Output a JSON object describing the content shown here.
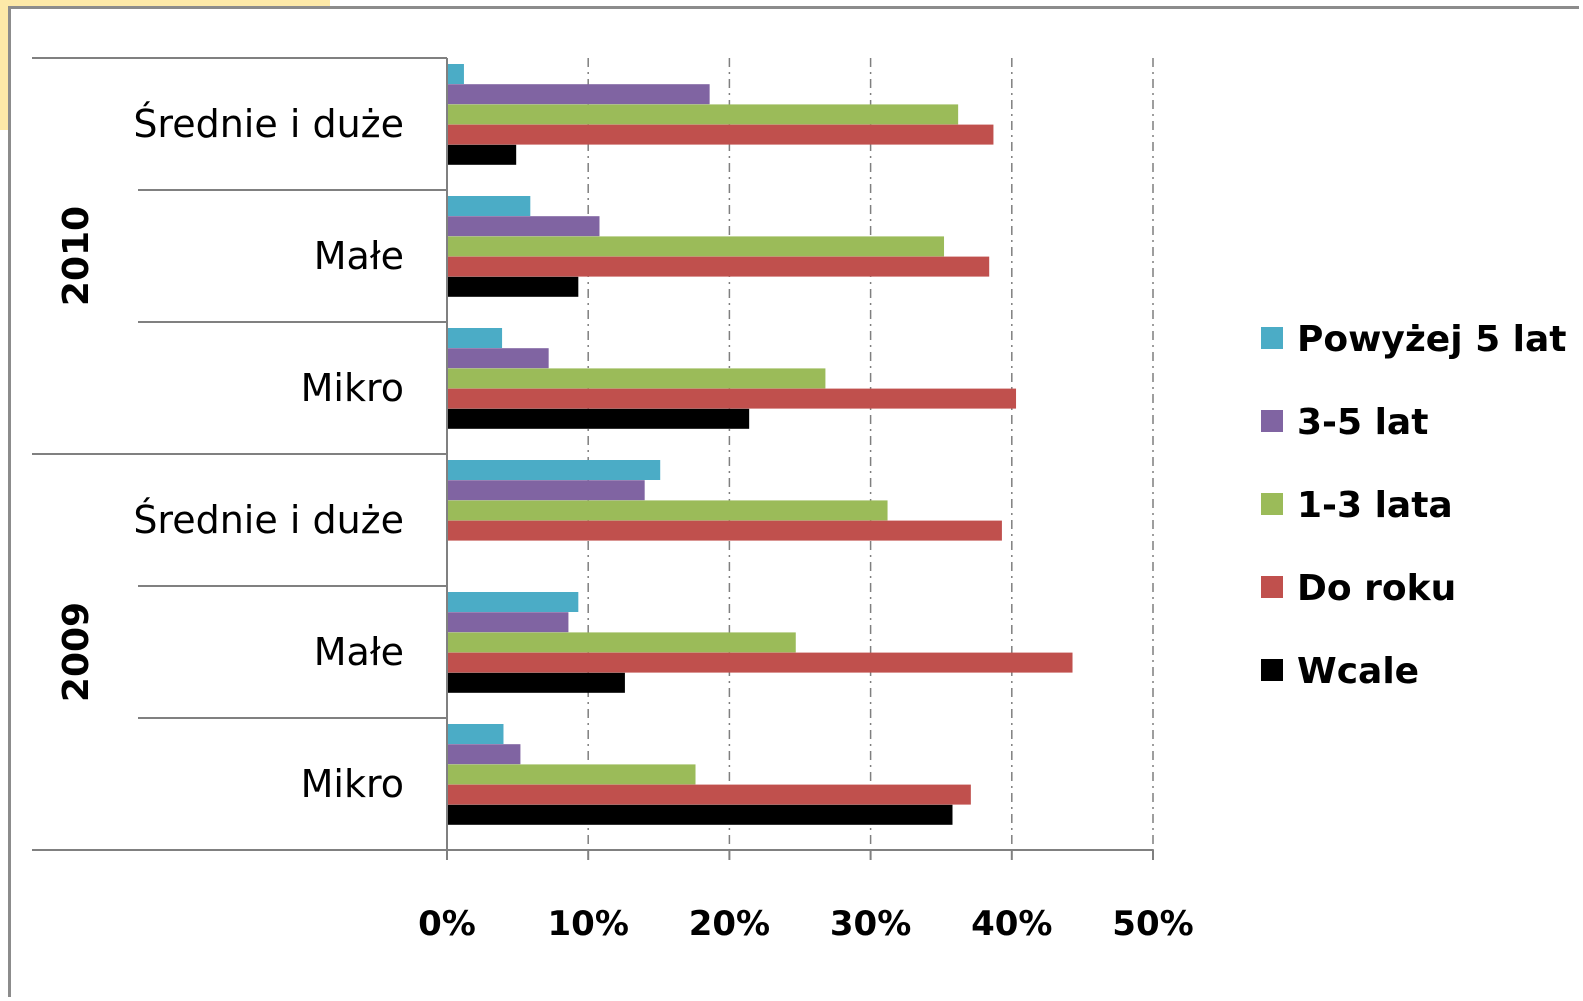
{
  "chart_data": {
    "type": "bar",
    "orientation": "horizontal",
    "title": "",
    "xlabel": "",
    "ylabel": "",
    "xlim": [
      0,
      50
    ],
    "x_ticks": [
      "0%",
      "10%",
      "20%",
      "30%",
      "40%",
      "50%"
    ],
    "grid": "vertical dash-dot lines",
    "legend_position": "right",
    "groups": [
      {
        "year": "2010",
        "categories": [
          "Średnie i duże",
          "Małe",
          "Mikro"
        ]
      },
      {
        "year": "2009",
        "categories": [
          "Średnie i duże",
          "Małe",
          "Mikro"
        ]
      }
    ],
    "categories": [
      "2010 Średnie i duże",
      "2010 Małe",
      "2010 Mikro",
      "2009 Średnie i duże",
      "2009 Małe",
      "2009 Mikro"
    ],
    "series": [
      {
        "name": "Powyżej 5 lat",
        "color": "#4bacc6",
        "values": [
          1.2,
          5.9,
          3.9,
          15.1,
          9.3,
          4.0
        ]
      },
      {
        "name": "3-5 lat",
        "color": "#8064a2",
        "values": [
          18.6,
          10.8,
          7.2,
          14.0,
          8.6,
          5.2
        ]
      },
      {
        "name": "1-3 lata",
        "color": "#9bbb59",
        "values": [
          36.2,
          35.2,
          26.8,
          31.2,
          24.7,
          17.6
        ]
      },
      {
        "name": "Do roku",
        "color": "#c0504d",
        "values": [
          38.7,
          38.4,
          40.3,
          39.3,
          44.3,
          37.1
        ]
      },
      {
        "name": "Wcale",
        "color": "#000000",
        "values": [
          4.9,
          9.3,
          21.4,
          0,
          12.6,
          35.8
        ]
      }
    ]
  }
}
